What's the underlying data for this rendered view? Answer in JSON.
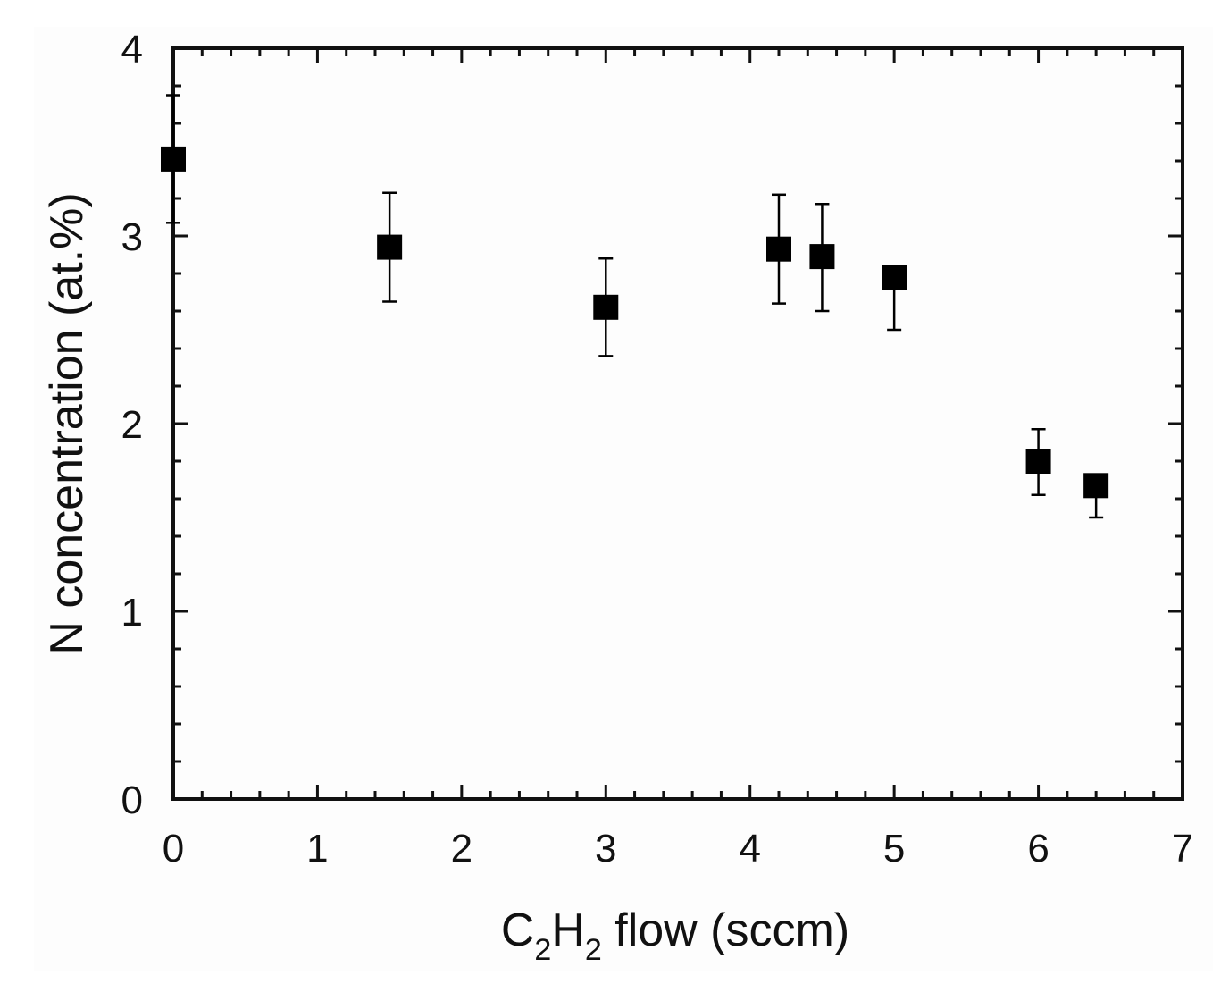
{
  "chart_data": {
    "type": "scatter",
    "xlabel": {
      "base": "C",
      "sub1": "2",
      "mid": "H",
      "sub2": "2",
      "rest": " flow (sccm)"
    },
    "ylabel": "N concentration (at.%)",
    "xlim": [
      0,
      7
    ],
    "ylim": [
      0,
      4
    ],
    "x_ticks": [
      "0",
      "1",
      "2",
      "3",
      "4",
      "5",
      "6",
      "7"
    ],
    "y_ticks": [
      "0",
      "1",
      "2",
      "3",
      "4"
    ],
    "grid": false,
    "marker": "filled-square",
    "colors": {
      "marker": "#000000",
      "axis": "#111111",
      "background": "#fdfdfd"
    },
    "points": [
      {
        "x": 0.0,
        "y": 3.41,
        "err_low": 3.07,
        "err_high": 3.75
      },
      {
        "x": 1.5,
        "y": 2.94,
        "err_low": 2.65,
        "err_high": 3.23
      },
      {
        "x": 3.0,
        "y": 2.62,
        "err_low": 2.36,
        "err_high": 2.88
      },
      {
        "x": 4.2,
        "y": 2.93,
        "err_low": 2.64,
        "err_high": 3.22
      },
      {
        "x": 4.5,
        "y": 2.89,
        "err_low": 2.6,
        "err_high": 3.17
      },
      {
        "x": 5.0,
        "y": 2.78,
        "err_low": 2.5,
        "err_high": 2.78
      },
      {
        "x": 6.0,
        "y": 1.8,
        "err_low": 1.62,
        "err_high": 1.97
      },
      {
        "x": 6.4,
        "y": 1.67,
        "err_low": 1.5,
        "err_high": 1.67
      }
    ]
  }
}
